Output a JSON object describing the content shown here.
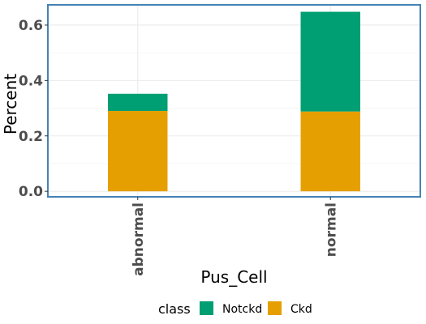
{
  "chart_data": {
    "type": "bar",
    "stacked": true,
    "categories": [
      "abnormal",
      "normal"
    ],
    "series": [
      {
        "name": "Ckd",
        "values": [
          0.29,
          0.288
        ],
        "color": "#E69F00"
      },
      {
        "name": "Notckd",
        "values": [
          0.062,
          0.36
        ],
        "color": "#009E73"
      }
    ],
    "xlabel": "Pus_Cell",
    "ylabel": "Percent",
    "ylim": [
      -0.02,
      0.673
    ],
    "yticks": [
      0.0,
      0.2,
      0.4,
      0.6
    ],
    "ytick_labels": [
      "0.0",
      "0.2",
      "0.4",
      "0.6"
    ],
    "grid": true,
    "panel_border_color": "#4682B4",
    "legend": {
      "title": "class",
      "position": "bottom",
      "entries": [
        {
          "label": "Notckd",
          "color": "#009E73"
        },
        {
          "label": "Ckd",
          "color": "#E69F00"
        }
      ]
    }
  }
}
